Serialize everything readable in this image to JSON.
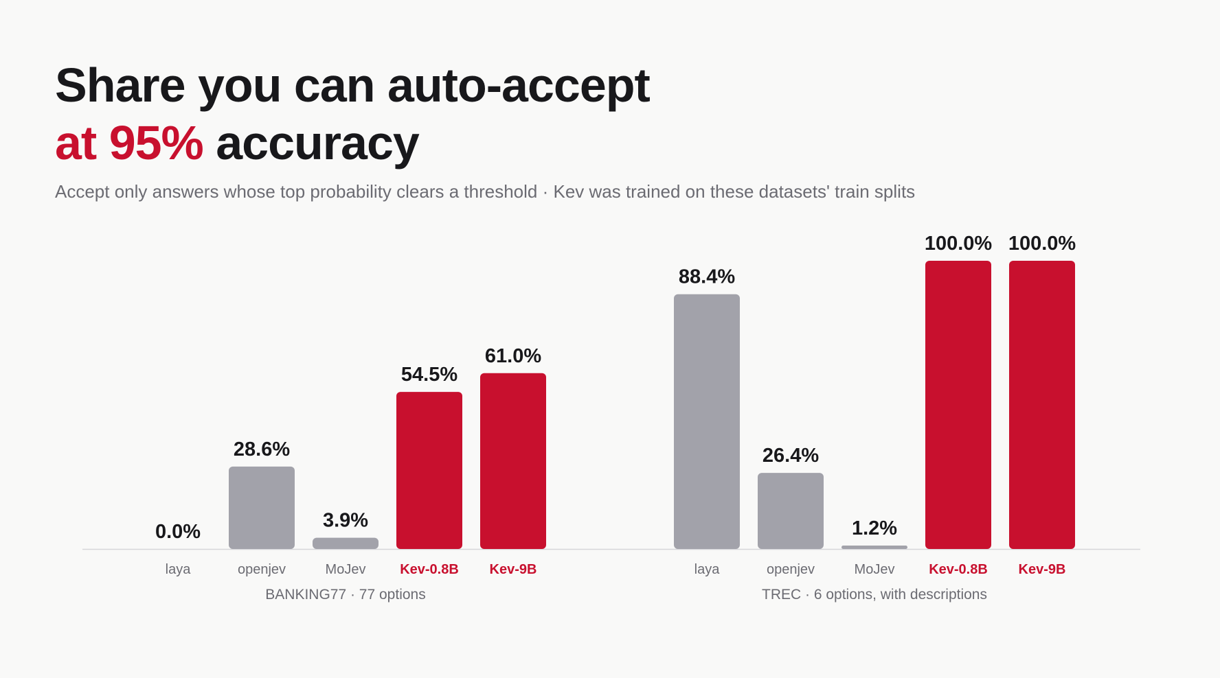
{
  "header": {
    "title_line1": "Share you can auto-accept",
    "title_accent": "at 95%",
    "title_rest": " accuracy",
    "subtitle": "Accept only answers whose top probability clears a threshold · Kev was trained on these datasets' train splits"
  },
  "colors": {
    "baseline_bar": "#a2a2aa",
    "kev_bar": "#c8102e",
    "axis": "#d6d6da"
  },
  "chart_data": [
    {
      "type": "bar",
      "group": "BANKING77 · 77 options",
      "categories": [
        "laya",
        "openjev",
        "MoJev",
        "Kev-0.8B",
        "Kev-9B"
      ],
      "values": [
        0.0,
        28.6,
        3.9,
        54.5,
        61.0
      ],
      "value_labels": [
        "0.0%",
        "28.6%",
        "3.9%",
        "54.5%",
        "61.0%"
      ],
      "highlighted": [
        false,
        false,
        false,
        true,
        true
      ],
      "ylim": [
        0,
        100
      ]
    },
    {
      "type": "bar",
      "group": "TREC · 6 options, with descriptions",
      "categories": [
        "laya",
        "openjev",
        "MoJev",
        "Kev-0.8B",
        "Kev-9B"
      ],
      "values": [
        88.4,
        26.4,
        1.2,
        100.0,
        100.0
      ],
      "value_labels": [
        "88.4%",
        "26.4%",
        "1.2%",
        "100.0%",
        "100.0%"
      ],
      "highlighted": [
        false,
        false,
        false,
        true,
        true
      ],
      "ylim": [
        0,
        100
      ]
    }
  ]
}
